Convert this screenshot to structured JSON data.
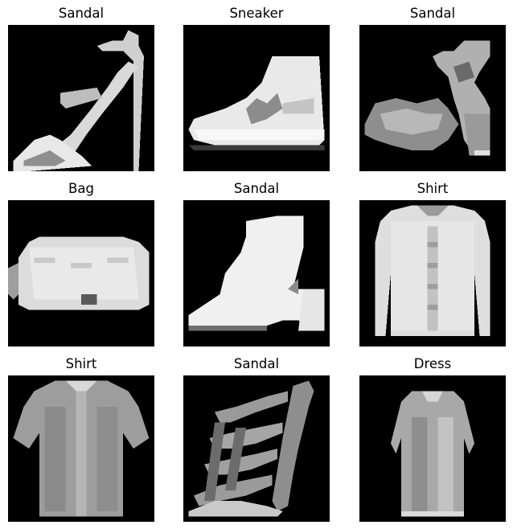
{
  "grid": {
    "items": [
      {
        "label": "Sandal"
      },
      {
        "label": "Sneaker"
      },
      {
        "label": "Sandal"
      },
      {
        "label": "Bag"
      },
      {
        "label": "Sandal"
      },
      {
        "label": "Shirt"
      },
      {
        "label": "Shirt"
      },
      {
        "label": "Sandal"
      },
      {
        "label": "Dress"
      }
    ]
  },
  "colors": {
    "background": "#ffffff",
    "tile_background": "#000000",
    "label_text": "#000000"
  }
}
